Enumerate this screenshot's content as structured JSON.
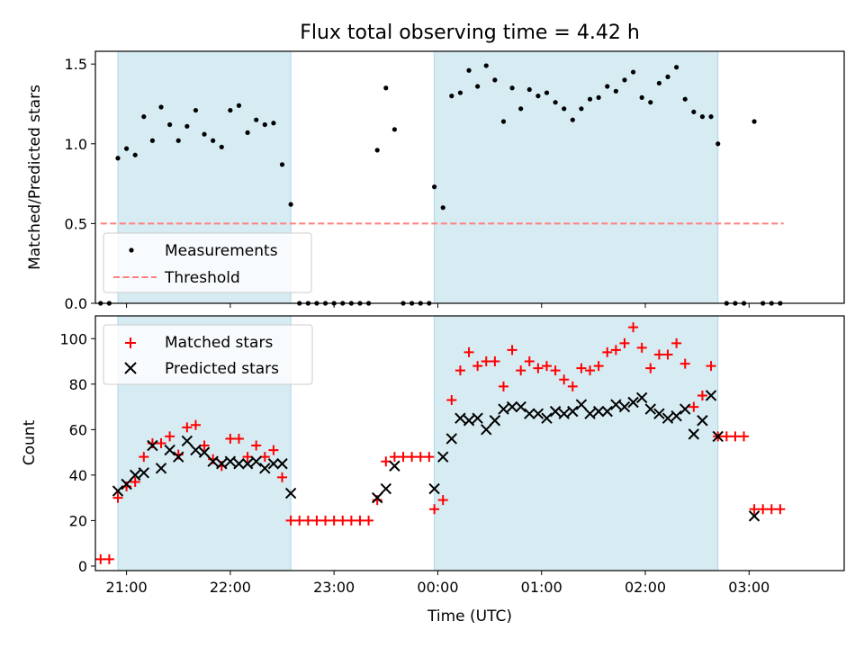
{
  "chart_data": [
    {
      "type": "scatter",
      "title": "Flux total observing time = 4.42 h",
      "ylabel": "Matched/Predicted stars",
      "ylim": [
        0,
        1.58
      ],
      "yticks": [
        0.0,
        0.5,
        1.0,
        1.5
      ],
      "xlim": [
        "20:42",
        "03:55"
      ],
      "xticks": [
        "21:00",
        "22:00",
        "23:00",
        "00:00",
        "01:00",
        "02:00",
        "03:00"
      ],
      "shaded_spans": [
        [
          "20:55",
          "22:35"
        ],
        [
          "23:58",
          "02:42"
        ]
      ],
      "shade_color": "#add8e6",
      "threshold": {
        "name": "Threshold",
        "value": 0.5,
        "x_range": [
          "20:45",
          "03:20"
        ],
        "color": "#ff7f7f"
      },
      "legend": [
        "Measurements",
        "Threshold"
      ],
      "legend_position": "lower left",
      "series": [
        {
          "name": "Measurements",
          "marker": "dot",
          "color": "#000000",
          "points": [
            [
              "20:45",
              0.0
            ],
            [
              "20:50",
              0.0
            ],
            [
              "20:55",
              0.91
            ],
            [
              "21:00",
              0.97
            ],
            [
              "21:05",
              0.93
            ],
            [
              "21:10",
              1.17
            ],
            [
              "21:15",
              1.02
            ],
            [
              "21:20",
              1.23
            ],
            [
              "21:25",
              1.12
            ],
            [
              "21:30",
              1.02
            ],
            [
              "21:35",
              1.11
            ],
            [
              "21:40",
              1.21
            ],
            [
              "21:45",
              1.06
            ],
            [
              "21:50",
              1.02
            ],
            [
              "21:55",
              0.98
            ],
            [
              "22:00",
              1.21
            ],
            [
              "22:05",
              1.24
            ],
            [
              "22:10",
              1.07
            ],
            [
              "22:15",
              1.15
            ],
            [
              "22:20",
              1.12
            ],
            [
              "22:25",
              1.13
            ],
            [
              "22:30",
              0.87
            ],
            [
              "22:35",
              0.62
            ],
            [
              "22:40",
              0.0
            ],
            [
              "22:45",
              0.0
            ],
            [
              "22:50",
              0.0
            ],
            [
              "22:55",
              0.0
            ],
            [
              "23:00",
              0.0
            ],
            [
              "23:05",
              0.0
            ],
            [
              "23:10",
              0.0
            ],
            [
              "23:15",
              0.0
            ],
            [
              "23:20",
              0.0
            ],
            [
              "23:25",
              0.96
            ],
            [
              "23:30",
              1.35
            ],
            [
              "23:35",
              1.09
            ],
            [
              "23:40",
              0.0
            ],
            [
              "23:45",
              0.0
            ],
            [
              "23:50",
              0.0
            ],
            [
              "23:55",
              0.0
            ],
            [
              "23:58",
              0.73
            ],
            [
              "00:03",
              0.6
            ],
            [
              "00:08",
              1.3
            ],
            [
              "00:13",
              1.32
            ],
            [
              "00:18",
              1.46
            ],
            [
              "00:23",
              1.36
            ],
            [
              "00:28",
              1.49
            ],
            [
              "00:33",
              1.4
            ],
            [
              "00:38",
              1.14
            ],
            [
              "00:43",
              1.35
            ],
            [
              "00:48",
              1.22
            ],
            [
              "00:53",
              1.34
            ],
            [
              "00:58",
              1.3
            ],
            [
              "01:03",
              1.32
            ],
            [
              "01:08",
              1.26
            ],
            [
              "01:13",
              1.22
            ],
            [
              "01:18",
              1.15
            ],
            [
              "01:23",
              1.22
            ],
            [
              "01:28",
              1.28
            ],
            [
              "01:33",
              1.29
            ],
            [
              "01:38",
              1.36
            ],
            [
              "01:43",
              1.33
            ],
            [
              "01:48",
              1.4
            ],
            [
              "01:53",
              1.45
            ],
            [
              "01:58",
              1.29
            ],
            [
              "02:03",
              1.26
            ],
            [
              "02:08",
              1.38
            ],
            [
              "02:13",
              1.42
            ],
            [
              "02:18",
              1.48
            ],
            [
              "02:23",
              1.28
            ],
            [
              "02:28",
              1.2
            ],
            [
              "02:33",
              1.17
            ],
            [
              "02:38",
              1.17
            ],
            [
              "02:42",
              1.0
            ],
            [
              "02:47",
              0.0
            ],
            [
              "02:52",
              0.0
            ],
            [
              "02:57",
              0.0
            ],
            [
              "03:03",
              1.14
            ],
            [
              "03:08",
              0.0
            ],
            [
              "03:13",
              0.0
            ],
            [
              "03:18",
              0.0
            ]
          ]
        }
      ]
    },
    {
      "type": "scatter",
      "xlabel": "Time (UTC)",
      "ylabel": "Count",
      "ylim": [
        -2,
        110
      ],
      "yticks": [
        0,
        20,
        40,
        60,
        80,
        100
      ],
      "xlim": [
        "20:42",
        "03:55"
      ],
      "xticks": [
        "21:00",
        "22:00",
        "23:00",
        "00:00",
        "01:00",
        "02:00",
        "03:00"
      ],
      "shaded_spans": [
        [
          "20:55",
          "22:35"
        ],
        [
          "23:58",
          "02:42"
        ]
      ],
      "shade_color": "#add8e6",
      "legend": [
        "Matched stars",
        "Predicted stars"
      ],
      "legend_position": "upper left",
      "series": [
        {
          "name": "Matched stars",
          "marker": "plus",
          "color": "#ff0000",
          "points": [
            [
              "20:45",
              3
            ],
            [
              "20:50",
              3
            ],
            [
              "20:55",
              30
            ],
            [
              "21:00",
              35
            ],
            [
              "21:05",
              37
            ],
            [
              "21:10",
              48
            ],
            [
              "21:15",
              54
            ],
            [
              "21:20",
              54
            ],
            [
              "21:25",
              57
            ],
            [
              "21:30",
              49
            ],
            [
              "21:35",
              61
            ],
            [
              "21:40",
              62
            ],
            [
              "21:45",
              53
            ],
            [
              "21:50",
              47
            ],
            [
              "21:55",
              44
            ],
            [
              "22:00",
              56
            ],
            [
              "22:05",
              56
            ],
            [
              "22:10",
              48
            ],
            [
              "22:15",
              53
            ],
            [
              "22:20",
              48
            ],
            [
              "22:25",
              51
            ],
            [
              "22:30",
              39
            ],
            [
              "22:35",
              20
            ],
            [
              "22:40",
              20
            ],
            [
              "22:45",
              20
            ],
            [
              "22:50",
              20
            ],
            [
              "22:55",
              20
            ],
            [
              "23:00",
              20
            ],
            [
              "23:05",
              20
            ],
            [
              "23:10",
              20
            ],
            [
              "23:15",
              20
            ],
            [
              "23:20",
              20
            ],
            [
              "23:25",
              29
            ],
            [
              "23:30",
              46
            ],
            [
              "23:35",
              48
            ],
            [
              "23:40",
              48
            ],
            [
              "23:45",
              48
            ],
            [
              "23:50",
              48
            ],
            [
              "23:55",
              48
            ],
            [
              "23:58",
              25
            ],
            [
              "00:03",
              29
            ],
            [
              "00:08",
              73
            ],
            [
              "00:13",
              86
            ],
            [
              "00:18",
              94
            ],
            [
              "00:23",
              88
            ],
            [
              "00:28",
              90
            ],
            [
              "00:33",
              90
            ],
            [
              "00:38",
              79
            ],
            [
              "00:43",
              95
            ],
            [
              "00:48",
              86
            ],
            [
              "00:53",
              90
            ],
            [
              "00:58",
              87
            ],
            [
              "01:03",
              88
            ],
            [
              "01:08",
              86
            ],
            [
              "01:13",
              82
            ],
            [
              "01:18",
              79
            ],
            [
              "01:23",
              87
            ],
            [
              "01:28",
              86
            ],
            [
              "01:33",
              88
            ],
            [
              "01:38",
              94
            ],
            [
              "01:43",
              95
            ],
            [
              "01:48",
              98
            ],
            [
              "01:53",
              105
            ],
            [
              "01:58",
              96
            ],
            [
              "02:03",
              87
            ],
            [
              "02:08",
              93
            ],
            [
              "02:13",
              93
            ],
            [
              "02:18",
              98
            ],
            [
              "02:23",
              89
            ],
            [
              "02:28",
              70
            ],
            [
              "02:33",
              75
            ],
            [
              "02:38",
              88
            ],
            [
              "02:42",
              57
            ],
            [
              "02:47",
              57
            ],
            [
              "02:52",
              57
            ],
            [
              "02:57",
              57
            ],
            [
              "03:03",
              25
            ],
            [
              "03:08",
              25
            ],
            [
              "03:13",
              25
            ],
            [
              "03:18",
              25
            ]
          ]
        },
        {
          "name": "Predicted stars",
          "marker": "x",
          "color": "#000000",
          "points": [
            [
              "20:55",
              33
            ],
            [
              "21:00",
              36
            ],
            [
              "21:05",
              40
            ],
            [
              "21:10",
              41
            ],
            [
              "21:15",
              53
            ],
            [
              "21:20",
              43
            ],
            [
              "21:25",
              51
            ],
            [
              "21:30",
              48
            ],
            [
              "21:35",
              55
            ],
            [
              "21:40",
              51
            ],
            [
              "21:45",
              50
            ],
            [
              "21:50",
              46
            ],
            [
              "21:55",
              45
            ],
            [
              "22:00",
              46
            ],
            [
              "22:05",
              45
            ],
            [
              "22:10",
              45
            ],
            [
              "22:15",
              46
            ],
            [
              "22:20",
              43
            ],
            [
              "22:25",
              45
            ],
            [
              "22:30",
              45
            ],
            [
              "22:35",
              32
            ],
            [
              "23:25",
              30
            ],
            [
              "23:30",
              34
            ],
            [
              "23:35",
              44
            ],
            [
              "23:58",
              34
            ],
            [
              "00:03",
              48
            ],
            [
              "00:08",
              56
            ],
            [
              "00:13",
              65
            ],
            [
              "00:18",
              64
            ],
            [
              "00:23",
              65
            ],
            [
              "00:28",
              60
            ],
            [
              "00:33",
              64
            ],
            [
              "00:38",
              69
            ],
            [
              "00:43",
              70
            ],
            [
              "00:48",
              70
            ],
            [
              "00:53",
              67
            ],
            [
              "00:58",
              67
            ],
            [
              "01:03",
              65
            ],
            [
              "01:08",
              68
            ],
            [
              "01:13",
              67
            ],
            [
              "01:18",
              68
            ],
            [
              "01:23",
              71
            ],
            [
              "01:28",
              67
            ],
            [
              "01:33",
              68
            ],
            [
              "01:38",
              68
            ],
            [
              "01:43",
              71
            ],
            [
              "01:48",
              70
            ],
            [
              "01:53",
              72
            ],
            [
              "01:58",
              74
            ],
            [
              "02:03",
              69
            ],
            [
              "02:08",
              67
            ],
            [
              "02:13",
              65
            ],
            [
              "02:18",
              66
            ],
            [
              "02:23",
              69
            ],
            [
              "02:28",
              58
            ],
            [
              "02:33",
              64
            ],
            [
              "02:38",
              75
            ],
            [
              "02:42",
              57
            ],
            [
              "03:03",
              22
            ]
          ]
        }
      ]
    }
  ]
}
